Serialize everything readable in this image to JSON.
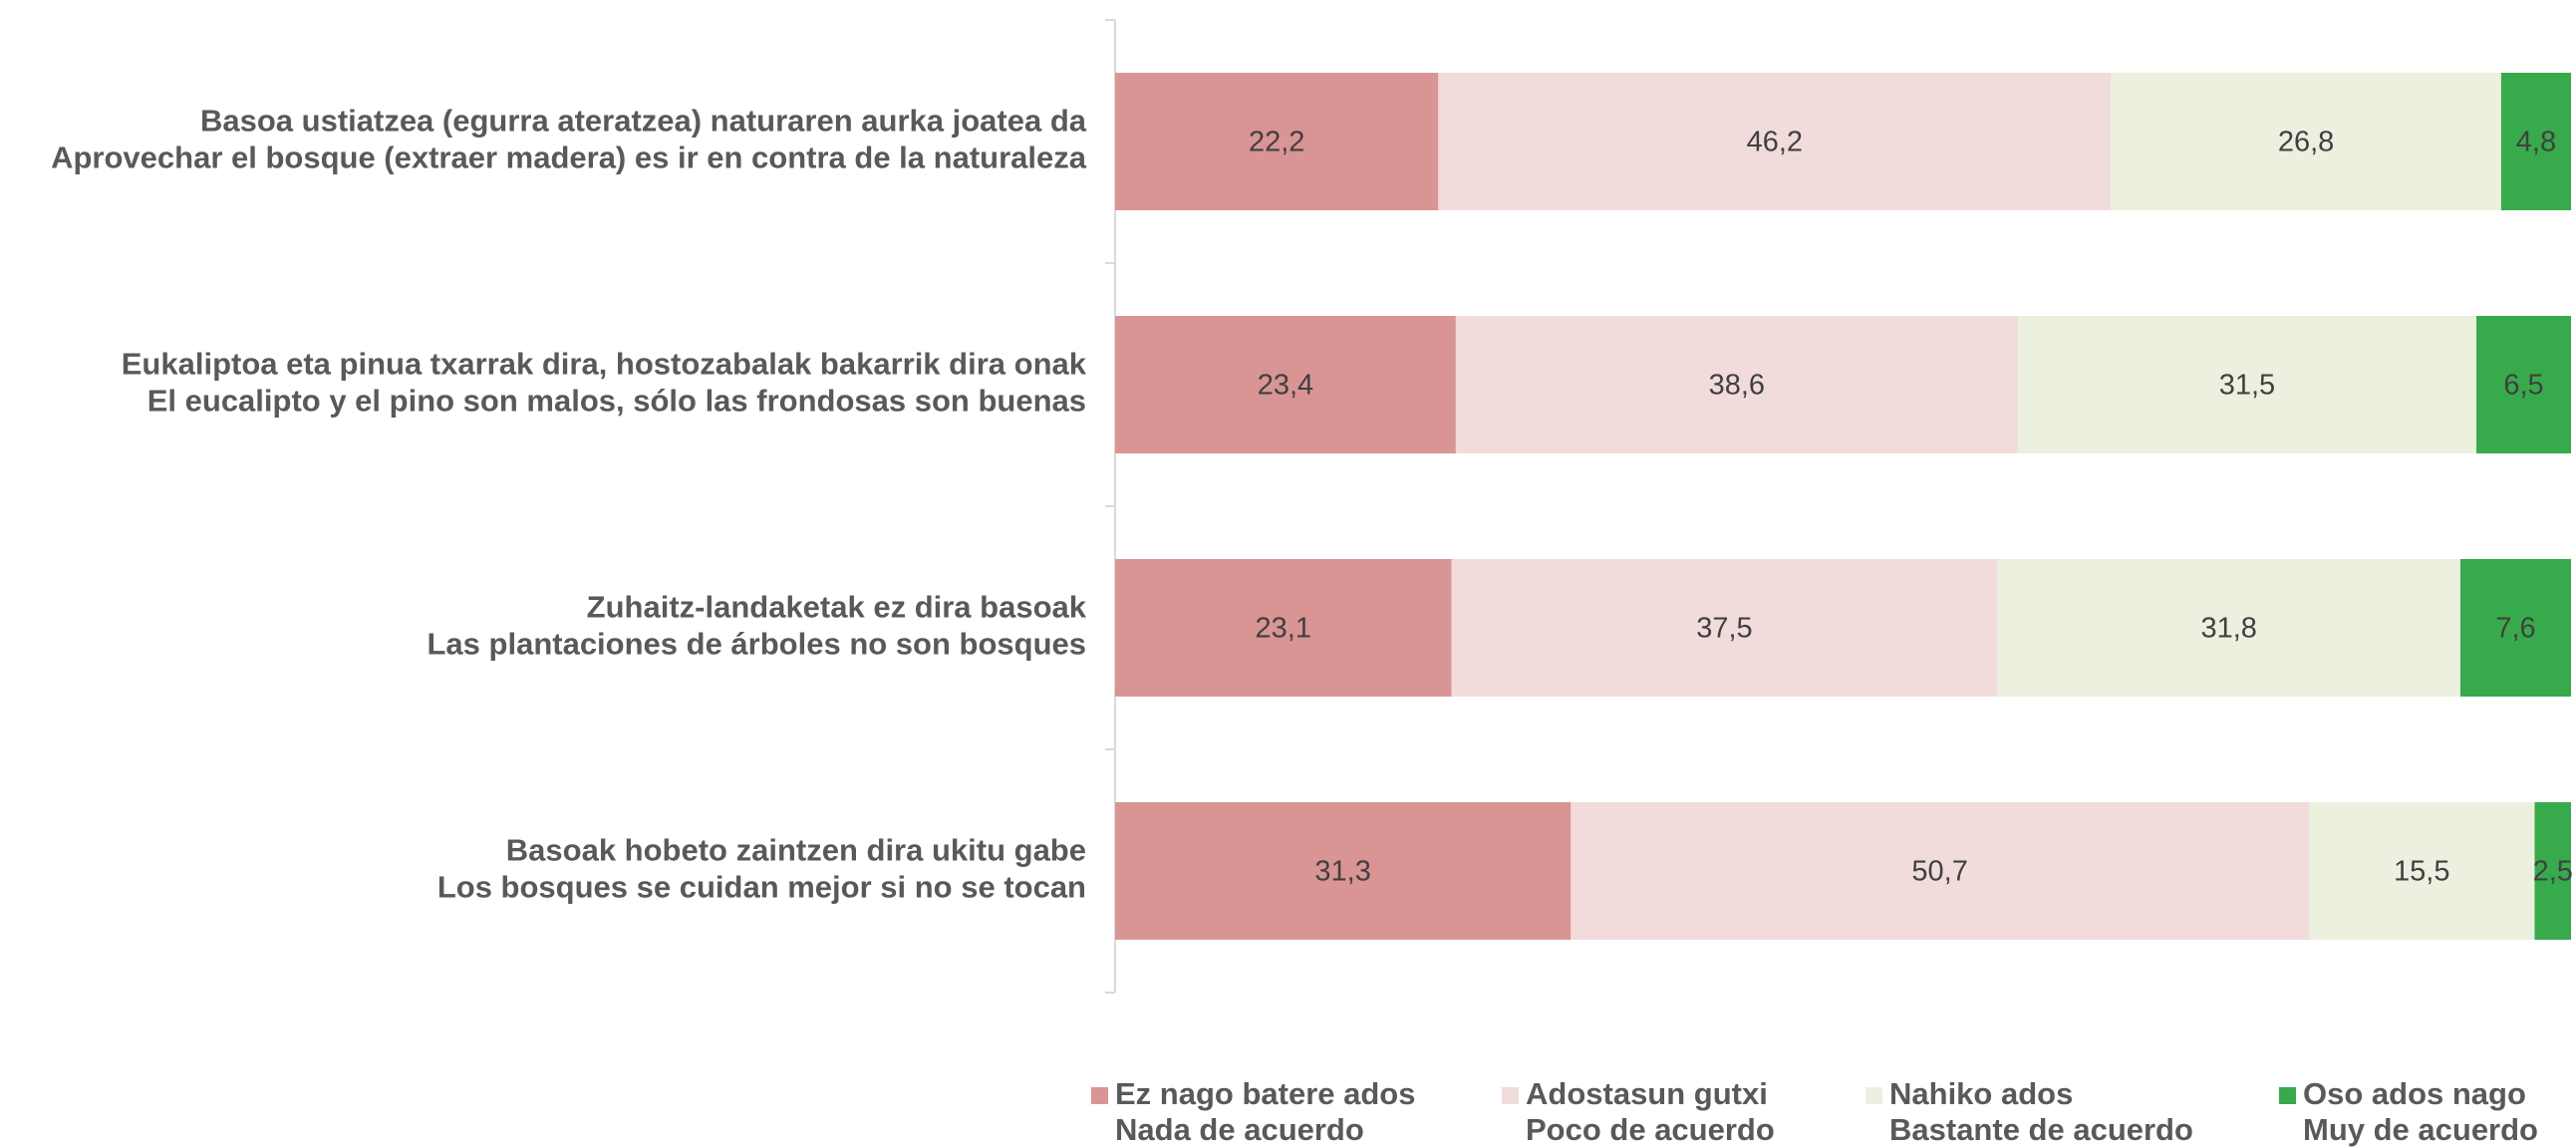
{
  "chart_data": {
    "type": "stacked_bar_horizontal",
    "categories": [
      [
        "Basoa ustiatzea (egurra ateratzea) naturaren aurka joatea da",
        "Aprovechar el bosque (extraer madera) es ir en contra de la naturaleza"
      ],
      [
        "Eukaliptoa eta pinua txarrak dira, hostozabalak bakarrik dira onak",
        "El eucalipto y el pino son malos, sólo las frondosas son buenas"
      ],
      [
        "Zuhaitz-landaketak ez dira basoak",
        "Las plantaciones de árboles no son bosques"
      ],
      [
        "Basoak hobeto zaintzen dira ukitu gabe",
        "Los bosques se cuidan mejor si no se tocan"
      ]
    ],
    "series": [
      {
        "name": [
          "Ez nago batere ados",
          "Nada de acuerdo"
        ],
        "color": "#d99594",
        "values": [
          22.2,
          23.4,
          23.1,
          31.3
        ],
        "value_labels": [
          "22,2",
          "23,4",
          "23,1",
          "31,3"
        ]
      },
      {
        "name": [
          "Adostasun gutxi",
          "Poco de acuerdo"
        ],
        "color": "#f2dcdb",
        "values": [
          46.2,
          38.6,
          37.5,
          50.7
        ],
        "value_labels": [
          "46,2",
          "38,6",
          "37,5",
          "50,7"
        ]
      },
      {
        "name": [
          "Nahiko ados",
          "Bastante de acuerdo"
        ],
        "color": "#ebf1de",
        "values": [
          26.8,
          31.5,
          31.8,
          15.5
        ],
        "value_labels": [
          "26,8",
          "31,5",
          "31,8",
          "15,5"
        ]
      },
      {
        "name": [
          "Oso ados nago",
          "Muy de acuerdo"
        ],
        "color": "#37ab4b",
        "values": [
          4.8,
          6.5,
          7.6,
          2.5
        ],
        "value_labels": [
          "4,8",
          "6,5",
          "7,6",
          "2,5"
        ]
      }
    ],
    "xlim": [
      0,
      100
    ],
    "legend": "bottom"
  }
}
